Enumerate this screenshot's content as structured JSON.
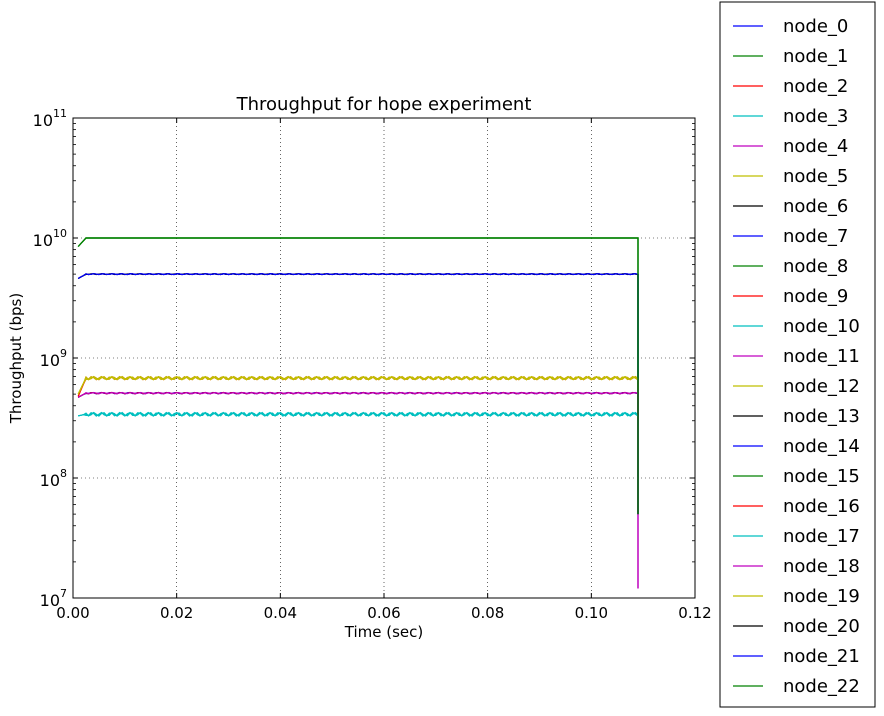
{
  "chart_data": {
    "type": "line",
    "title": "Throughput for hope experiment",
    "xlabel": "Time (sec)",
    "ylabel": "Throughput (bps)",
    "xlim": [
      0.0,
      0.12
    ],
    "ylim": [
      10000000,
      100000000000
    ],
    "yscale": "log",
    "grid": true,
    "legend_position": "outside-right",
    "x_ticks": [
      "0.00",
      "0.02",
      "0.04",
      "0.06",
      "0.08",
      "0.10",
      "0.12"
    ],
    "x_tick_values": [
      0.0,
      0.02,
      0.04,
      0.06,
      0.08,
      0.1,
      0.12
    ],
    "y_ticks": [
      {
        "value": 10000000,
        "base": "10",
        "exp": "7"
      },
      {
        "value": 100000000,
        "base": "10",
        "exp": "8"
      },
      {
        "value": 1000000000,
        "base": "10",
        "exp": "9"
      },
      {
        "value": 10000000000,
        "base": "10",
        "exp": "10"
      },
      {
        "value": 100000000000,
        "base": "10",
        "exp": "11"
      }
    ],
    "end_time": 0.109,
    "series": [
      {
        "name": "node_0",
        "color": "#0000ff",
        "level": 5000000000,
        "ripple": 0.008,
        "start": 4600000000,
        "final": 50000000
      },
      {
        "name": "node_1",
        "color": "#008000",
        "level": 10000000000,
        "ripple": 0.0,
        "start": 8500000000,
        "final": 50000000
      },
      {
        "name": "node_2",
        "color": "#ff0000",
        "level": 680000000,
        "ripple": 0.03,
        "start": 480000000,
        "final": 50000000
      },
      {
        "name": "node_3",
        "color": "#00bfbf",
        "level": 340000000,
        "ripple": 0.035,
        "start": 330000000,
        "final": 50000000
      },
      {
        "name": "node_4",
        "color": "#bf00bf",
        "level": 510000000,
        "ripple": 0.012,
        "start": 470000000,
        "final": 12000000
      },
      {
        "name": "node_5",
        "color": "#bfbf00",
        "level": 680000000,
        "ripple": 0.03,
        "start": 500000000,
        "final": 50000000
      },
      {
        "name": "node_6",
        "color": "#000000",
        "level": 5000000000,
        "ripple": 0.008,
        "start": 4600000000,
        "final": 50000000
      },
      {
        "name": "node_7",
        "color": "#0000ff",
        "level": 5000000000,
        "ripple": 0.008,
        "start": 4600000000,
        "final": 50000000
      },
      {
        "name": "node_8",
        "color": "#008000",
        "level": 10000000000,
        "ripple": 0.0,
        "start": 8500000000,
        "final": 50000000
      },
      {
        "name": "node_9",
        "color": "#ff0000",
        "level": 680000000,
        "ripple": 0.03,
        "start": 480000000,
        "final": 50000000
      },
      {
        "name": "node_10",
        "color": "#00bfbf",
        "level": 340000000,
        "ripple": 0.035,
        "start": 330000000,
        "final": 50000000
      },
      {
        "name": "node_11",
        "color": "#bf00bf",
        "level": 510000000,
        "ripple": 0.012,
        "start": 470000000,
        "final": 12000000
      },
      {
        "name": "node_12",
        "color": "#bfbf00",
        "level": 680000000,
        "ripple": 0.03,
        "start": 500000000,
        "final": 50000000
      },
      {
        "name": "node_13",
        "color": "#000000",
        "level": 510000000,
        "ripple": 0.012,
        "start": 470000000,
        "final": 50000000
      },
      {
        "name": "node_14",
        "color": "#0000ff",
        "level": 510000000,
        "ripple": 0.012,
        "start": 470000000,
        "final": 50000000
      },
      {
        "name": "node_15",
        "color": "#008000",
        "level": 10000000000,
        "ripple": 0.0,
        "start": 8500000000,
        "final": 50000000
      },
      {
        "name": "node_16",
        "color": "#ff0000",
        "level": 510000000,
        "ripple": 0.012,
        "start": 470000000,
        "final": 50000000
      },
      {
        "name": "node_17",
        "color": "#00bfbf",
        "level": 340000000,
        "ripple": 0.035,
        "start": 330000000,
        "final": 50000000
      },
      {
        "name": "node_18",
        "color": "#bf00bf",
        "level": 510000000,
        "ripple": 0.012,
        "start": 470000000,
        "final": 12000000
      },
      {
        "name": "node_19",
        "color": "#bfbf00",
        "level": 680000000,
        "ripple": 0.03,
        "start": 500000000,
        "final": 50000000
      },
      {
        "name": "node_20",
        "color": "#000000",
        "level": 5000000000,
        "ripple": 0.008,
        "start": 4600000000,
        "final": 50000000
      },
      {
        "name": "node_21",
        "color": "#0000ff",
        "level": 5000000000,
        "ripple": 0.008,
        "start": 4600000000,
        "final": 50000000
      },
      {
        "name": "node_22",
        "color": "#008000",
        "level": 10000000000,
        "ripple": 0.0,
        "start": 8500000000,
        "final": 50000000
      }
    ]
  }
}
